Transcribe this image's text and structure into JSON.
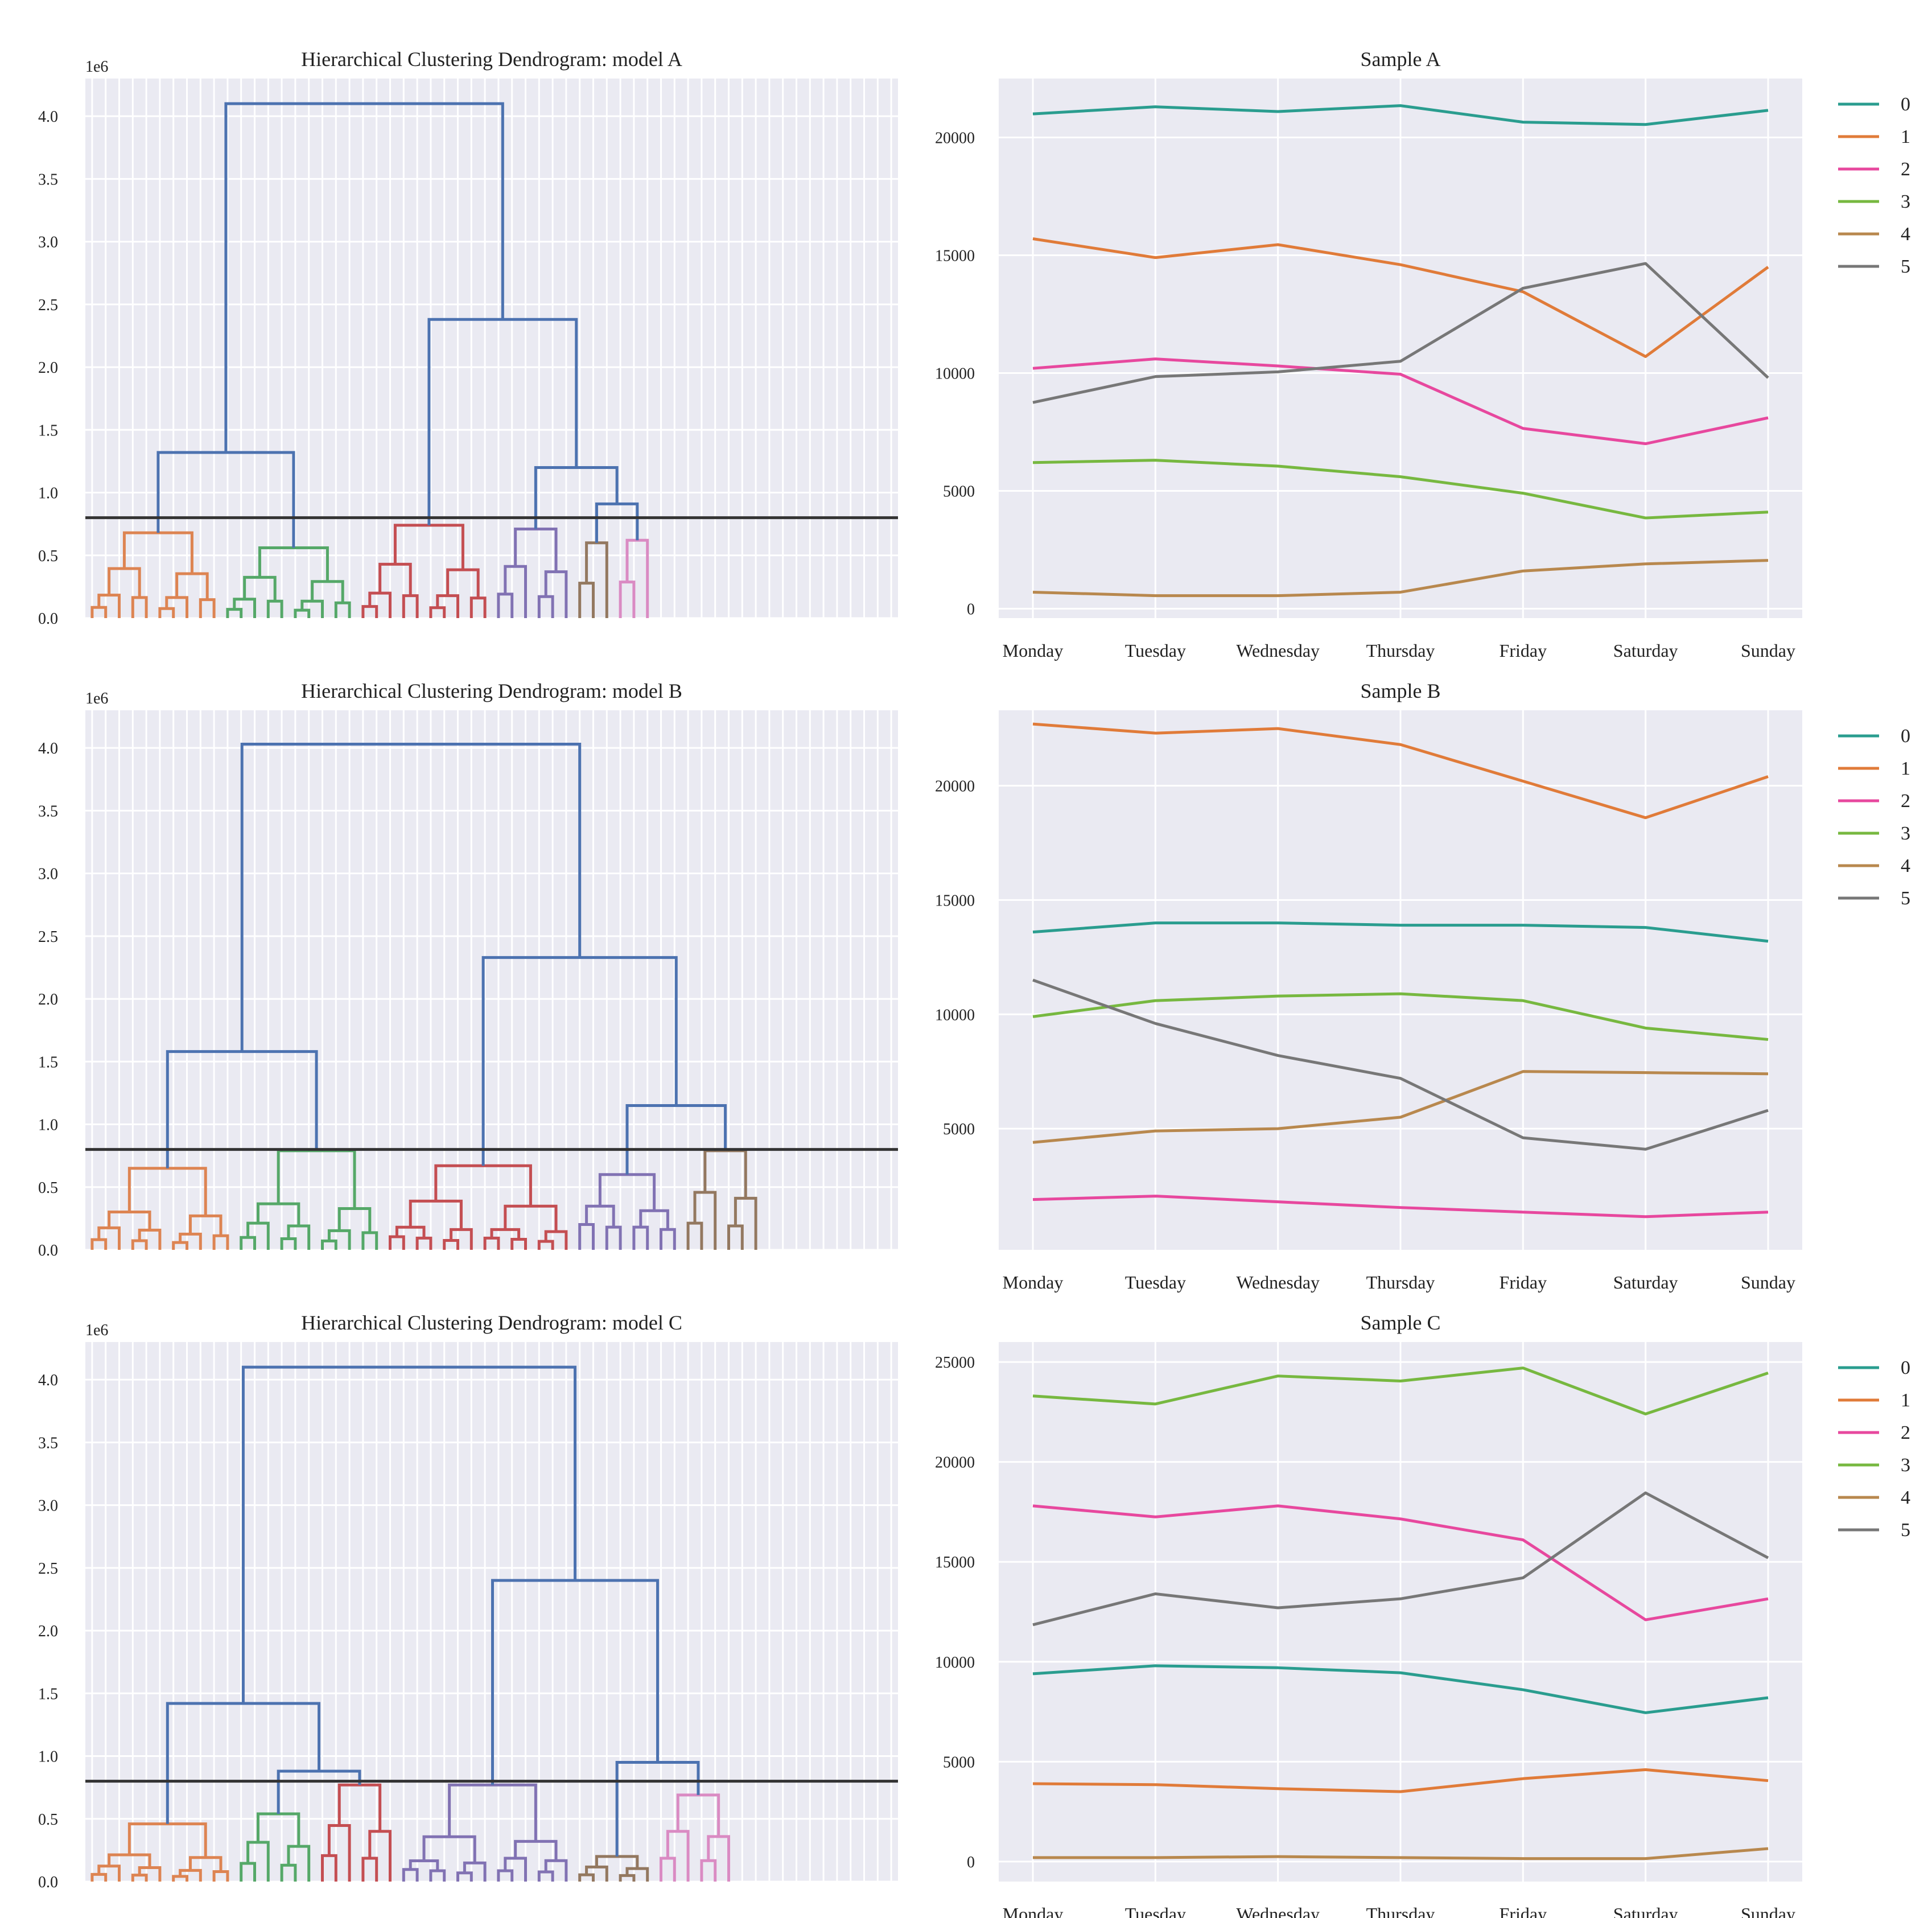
{
  "chart_data": [
    {
      "type": "dendrogram",
      "title": "Hierarchical Clustering Dendrogram: model A",
      "offset_label": "1e6",
      "yticks": [
        "0.0",
        "0.5",
        "1.0",
        "1.5",
        "2.0",
        "2.5",
        "3.0",
        "3.5",
        "4.0"
      ],
      "ylim": [
        0,
        4.3
      ],
      "cut_height": 0.8,
      "leaf_count": 60,
      "cluster_colors": [
        "#dd8452",
        "#55a868",
        "#c44e52",
        "#8172b3",
        "#937860",
        "#da8bc3"
      ],
      "above_color": "#4c72b0",
      "top_merge": 4.1,
      "left_group": {
        "merge": 1.32,
        "clusters": [
          0,
          1
        ]
      },
      "right_group": {
        "merge": 2.38,
        "left_clusters": [
          2
        ],
        "right_group": {
          "merge": 1.2,
          "left_clusters": [
            3
          ],
          "right_group": {
            "merge": 0.91,
            "clusters": [
              4,
              5
            ]
          }
        }
      },
      "clusters": [
        {
          "leaves": 10,
          "height": 0.68
        },
        {
          "leaves": 10,
          "height": 0.56
        },
        {
          "leaves": 10,
          "height": 0.74
        },
        {
          "leaves": 6,
          "height": 0.71
        },
        {
          "leaves": 3,
          "height": 0.6
        },
        {
          "leaves": 3,
          "height": 0.62
        }
      ]
    },
    {
      "type": "line",
      "title": "Sample A",
      "categories": [
        "Monday",
        "Tuesday",
        "Wednesday",
        "Thursday",
        "Friday",
        "Saturday",
        "Sunday"
      ],
      "ylim": [
        -400,
        22500
      ],
      "yticks": [
        0,
        5000,
        10000,
        15000,
        20000
      ],
      "series": [
        {
          "name": "0",
          "color": "#2a9d8f",
          "values": [
            21000,
            21300,
            21100,
            21350,
            20650,
            20550,
            21150
          ]
        },
        {
          "name": "1",
          "color": "#e07b39",
          "values": [
            15700,
            14900,
            15450,
            14600,
            13450,
            10700,
            14500
          ]
        },
        {
          "name": "2",
          "color": "#e7489e",
          "values": [
            10200,
            10600,
            10300,
            9950,
            7650,
            7000,
            8100
          ]
        },
        {
          "name": "3",
          "color": "#77b840",
          "values": [
            6200,
            6300,
            6050,
            5600,
            4900,
            3850,
            4100
          ]
        },
        {
          "name": "4",
          "color": "#b8884e",
          "values": [
            700,
            550,
            550,
            700,
            1600,
            1900,
            2050
          ]
        },
        {
          "name": "5",
          "color": "#777777",
          "values": [
            8750,
            9850,
            10050,
            10500,
            13600,
            14650,
            9800
          ]
        }
      ]
    },
    {
      "type": "dendrogram",
      "title": "Hierarchical Clustering Dendrogram: model B",
      "offset_label": "1e6",
      "yticks": [
        "0.0",
        "0.5",
        "1.0",
        "1.5",
        "2.0",
        "2.5",
        "3.0",
        "3.5",
        "4.0"
      ],
      "ylim": [
        0,
        4.3
      ],
      "cut_height": 0.8,
      "leaf_count": 60,
      "cluster_colors": [
        "#dd8452",
        "#55a868",
        "#c44e52",
        "#8172b3",
        "#937860"
      ],
      "above_color": "#4c72b0",
      "top_merge": 4.03,
      "left_group": {
        "merge": 1.58,
        "clusters": [
          0,
          1
        ]
      },
      "right_group": {
        "merge": 2.33,
        "left_clusters": [
          2
        ],
        "right_group": {
          "merge": 1.15,
          "clusters": [
            3,
            4
          ]
        }
      },
      "clusters": [
        {
          "leaves": 11,
          "height": 0.65
        },
        {
          "leaves": 11,
          "height": 0.79
        },
        {
          "leaves": 14,
          "height": 0.67
        },
        {
          "leaves": 8,
          "height": 0.6
        },
        {
          "leaves": 6,
          "height": 0.79
        }
      ]
    },
    {
      "type": "line",
      "title": "Sample B",
      "categories": [
        "Monday",
        "Tuesday",
        "Wednesday",
        "Thursday",
        "Friday",
        "Saturday",
        "Sunday"
      ],
      "ylim": [
        -300,
        23300
      ],
      "yticks": [
        5000,
        10000,
        15000,
        20000
      ],
      "series": [
        {
          "name": "0",
          "color": "#2a9d8f",
          "values": [
            13600,
            14000,
            14000,
            13900,
            13900,
            13800,
            13200
          ]
        },
        {
          "name": "1",
          "color": "#e07b39",
          "values": [
            22700,
            22300,
            22500,
            21800,
            20200,
            18600,
            20400
          ]
        },
        {
          "name": "2",
          "color": "#e7489e",
          "values": [
            1900,
            2050,
            1800,
            1550,
            1350,
            1150,
            1350
          ]
        },
        {
          "name": "3",
          "color": "#77b840",
          "values": [
            9900,
            10600,
            10800,
            10900,
            10600,
            9400,
            8900
          ]
        },
        {
          "name": "4",
          "color": "#b8884e",
          "values": [
            4400,
            4900,
            5000,
            5500,
            7500,
            7450,
            7400
          ]
        },
        {
          "name": "5",
          "color": "#777777",
          "values": [
            11500,
            9600,
            8200,
            7200,
            4600,
            4100,
            5800
          ]
        }
      ]
    },
    {
      "type": "dendrogram",
      "title": "Hierarchical Clustering Dendrogram: model C",
      "offset_label": "1e6",
      "yticks": [
        "0.0",
        "0.5",
        "1.0",
        "1.5",
        "2.0",
        "2.5",
        "3.0",
        "3.5",
        "4.0"
      ],
      "ylim": [
        0,
        4.3
      ],
      "cut_height": 0.8,
      "leaf_count": 60,
      "cluster_colors": [
        "#dd8452",
        "#55a868",
        "#c44e52",
        "#8172b3",
        "#937860",
        "#da8bc3"
      ],
      "above_color": "#4c72b0",
      "top_merge": 4.1,
      "left_group": {
        "merge": 1.42,
        "left_clusters": [
          0
        ],
        "right_group": {
          "merge": 0.88,
          "clusters": [
            1,
            2
          ]
        }
      },
      "right_group": {
        "merge": 2.4,
        "left_clusters": [
          3
        ],
        "right_group": {
          "merge": 0.95,
          "clusters": [
            4,
            5
          ]
        }
      },
      "clusters": [
        {
          "leaves": 11,
          "height": 0.46
        },
        {
          "leaves": 6,
          "height": 0.54
        },
        {
          "leaves": 6,
          "height": 0.77
        },
        {
          "leaves": 13,
          "height": 0.77
        },
        {
          "leaves": 6,
          "height": 0.2
        },
        {
          "leaves": 6,
          "height": 0.69
        }
      ]
    },
    {
      "type": "line",
      "title": "Sample C",
      "categories": [
        "Monday",
        "Tuesday",
        "Wednesday",
        "Thursday",
        "Friday",
        "Saturday",
        "Sunday"
      ],
      "ylim": [
        -1000,
        26000
      ],
      "yticks": [
        0,
        5000,
        10000,
        15000,
        20000,
        25000
      ],
      "series": [
        {
          "name": "0",
          "color": "#2a9d8f",
          "values": [
            9400,
            9800,
            9700,
            9450,
            8600,
            7450,
            8200
          ]
        },
        {
          "name": "1",
          "color": "#e07b39",
          "values": [
            3900,
            3850,
            3650,
            3500,
            4150,
            4600,
            4050
          ]
        },
        {
          "name": "2",
          "color": "#e7489e",
          "values": [
            17800,
            17250,
            17800,
            17150,
            16100,
            12100,
            13150
          ]
        },
        {
          "name": "3",
          "color": "#77b840",
          "values": [
            23300,
            22900,
            24300,
            24050,
            24700,
            22400,
            24450
          ]
        },
        {
          "name": "4",
          "color": "#b8884e",
          "values": [
            200,
            200,
            250,
            200,
            150,
            150,
            650
          ]
        },
        {
          "name": "5",
          "color": "#777777",
          "values": [
            11850,
            13400,
            12700,
            13150,
            14200,
            18450,
            15200
          ]
        }
      ]
    }
  ]
}
